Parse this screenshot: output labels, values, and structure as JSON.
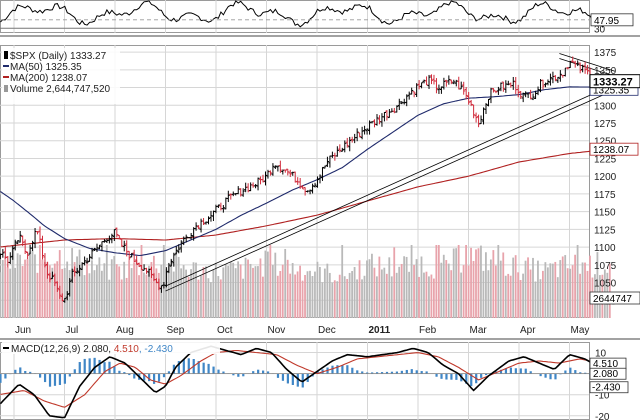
{
  "colors": {
    "background": "#ffffff",
    "grid": "#d6d6d6",
    "price_up": "#000000",
    "price_down": "#d02a3a",
    "ma50": "#1f2a6b",
    "ma200": "#b02020",
    "volume_up": "#b9b9b9",
    "volume_down": "#e8a3ab",
    "trendline": "#000000",
    "macd_line": "#000000",
    "signal_line": "#c0392b",
    "histogram": "#3f86c6"
  },
  "chart_data": [
    {
      "panel": "rsi",
      "type": "line",
      "y_ticks": [
        30
      ],
      "last_value_label": "47.95",
      "ylim": [
        20,
        90
      ]
    },
    {
      "panel": "price",
      "type": "line",
      "legend": {
        "symbol": "$SPX (Daily)",
        "symbol_value": "1333.27",
        "ma50_label": "MA(50)",
        "ma50_value": "1325.35",
        "ma200_label": "MA(200)",
        "ma200_value": "1238.07",
        "volume_label": "Volume",
        "volume_value": "2,644,747,520"
      },
      "months": [
        {
          "label": "Jun",
          "x": 0.0
        },
        {
          "label": "Jul",
          "x": 1.0
        },
        {
          "label": "Aug",
          "x": 2.0
        },
        {
          "label": "Sep",
          "x": 3.0
        },
        {
          "label": "Oct",
          "x": 4.0
        },
        {
          "label": "Nov",
          "x": 5.0
        },
        {
          "label": "Dec",
          "x": 6.0
        },
        {
          "label": "2011",
          "x": 7.0,
          "bold": true
        },
        {
          "label": "Feb",
          "x": 8.0
        },
        {
          "label": "Mar",
          "x": 9.0
        },
        {
          "label": "Apr",
          "x": 10.0
        },
        {
          "label": "May",
          "x": 11.0
        }
      ],
      "ylim": [
        1000,
        1385
      ],
      "y_ticks": [
        1025,
        1050,
        1075,
        1100,
        1125,
        1150,
        1175,
        1200,
        1225,
        1250,
        1275,
        1300,
        1325,
        1350,
        1375
      ],
      "price_anchors": [
        [
          -0.3,
          1095
        ],
        [
          -0.1,
          1080
        ],
        [
          0.1,
          1115
        ],
        [
          0.25,
          1090
        ],
        [
          0.45,
          1125
        ],
        [
          0.65,
          1065
        ],
        [
          0.8,
          1050
        ],
        [
          0.9,
          1030
        ],
        [
          1.0,
          1025
        ],
        [
          1.15,
          1060
        ],
        [
          1.4,
          1080
        ],
        [
          1.6,
          1095
        ],
        [
          1.85,
          1115
        ],
        [
          2.0,
          1120
        ],
        [
          2.1,
          1105
        ],
        [
          2.4,
          1080
        ],
        [
          2.6,
          1070
        ],
        [
          2.8,
          1050
        ],
        [
          2.95,
          1045
        ],
        [
          3.05,
          1075
        ],
        [
          3.3,
          1105
        ],
        [
          3.6,
          1130
        ],
        [
          3.9,
          1145
        ],
        [
          4.2,
          1165
        ],
        [
          4.5,
          1180
        ],
        [
          4.8,
          1190
        ],
        [
          5.0,
          1200
        ],
        [
          5.15,
          1220
        ],
        [
          5.35,
          1210
        ],
        [
          5.6,
          1195
        ],
        [
          5.8,
          1180
        ],
        [
          6.0,
          1195
        ],
        [
          6.2,
          1220
        ],
        [
          6.5,
          1240
        ],
        [
          6.8,
          1258
        ],
        [
          7.0,
          1270
        ],
        [
          7.3,
          1285
        ],
        [
          7.6,
          1300
        ],
        [
          7.9,
          1322
        ],
        [
          8.2,
          1335
        ],
        [
          8.4,
          1325
        ],
        [
          8.7,
          1335
        ],
        [
          8.9,
          1320
        ],
        [
          9.05,
          1300
        ],
        [
          9.2,
          1275
        ],
        [
          9.4,
          1315
        ],
        [
          9.6,
          1325
        ],
        [
          9.9,
          1330
        ],
        [
          10.1,
          1312
        ],
        [
          10.3,
          1318
        ],
        [
          10.5,
          1335
        ],
        [
          10.7,
          1340
        ],
        [
          10.85,
          1345
        ],
        [
          11.0,
          1362
        ],
        [
          11.2,
          1352
        ],
        [
          11.4,
          1345
        ],
        [
          11.6,
          1338
        ],
        [
          11.8,
          1333.27
        ]
      ],
      "ma50_anchors": [
        [
          -0.3,
          1180
        ],
        [
          0.0,
          1165
        ],
        [
          0.3,
          1148
        ],
        [
          0.6,
          1130
        ],
        [
          1.0,
          1112
        ],
        [
          1.5,
          1098
        ],
        [
          2.0,
          1092
        ],
        [
          2.5,
          1088
        ],
        [
          3.0,
          1095
        ],
        [
          3.5,
          1110
        ],
        [
          4.0,
          1125
        ],
        [
          4.5,
          1145
        ],
        [
          5.0,
          1162
        ],
        [
          5.5,
          1180
        ],
        [
          6.0,
          1195
        ],
        [
          6.5,
          1212
        ],
        [
          7.0,
          1238
        ],
        [
          7.5,
          1262
        ],
        [
          8.0,
          1286
        ],
        [
          8.5,
          1302
        ],
        [
          9.0,
          1310
        ],
        [
          9.5,
          1312
        ],
        [
          10.0,
          1315
        ],
        [
          10.5,
          1322
        ],
        [
          11.0,
          1326
        ],
        [
          11.8,
          1325.35
        ]
      ],
      "ma200_anchors": [
        [
          -0.3,
          1100
        ],
        [
          1.0,
          1110
        ],
        [
          2.0,
          1112
        ],
        [
          3.0,
          1110
        ],
        [
          4.0,
          1117
        ],
        [
          5.0,
          1130
        ],
        [
          6.0,
          1145
        ],
        [
          7.0,
          1165
        ],
        [
          8.0,
          1185
        ],
        [
          9.0,
          1200
        ],
        [
          10.0,
          1220
        ],
        [
          11.0,
          1232
        ],
        [
          11.8,
          1238.07
        ]
      ],
      "trendlines": [
        {
          "x1": 3.0,
          "y1": 1045,
          "x2": 11.9,
          "y2": 1330
        },
        {
          "x1": 3.0,
          "y1": 1038,
          "x2": 11.9,
          "y2": 1322
        },
        {
          "x1": 10.8,
          "y1": 1373,
          "x2": 11.9,
          "y2": 1348
        },
        {
          "x1": 10.8,
          "y1": 1366,
          "x2": 11.9,
          "y2": 1341
        }
      ],
      "volume_last_value": "2644747",
      "volume_scale_max": 3600000,
      "volume_anchors": [
        [
          -0.3,
          2600000
        ],
        [
          0.5,
          2900000
        ],
        [
          1.0,
          3100000
        ],
        [
          1.5,
          2600000
        ],
        [
          2.0,
          2300000
        ],
        [
          2.5,
          2600000
        ],
        [
          3.0,
          2800000
        ],
        [
          3.5,
          2400000
        ],
        [
          4.0,
          2300000
        ],
        [
          4.5,
          2400000
        ],
        [
          5.0,
          2700000
        ],
        [
          5.5,
          2500000
        ],
        [
          6.0,
          2300000
        ],
        [
          6.5,
          2100000
        ],
        [
          7.0,
          2600000
        ],
        [
          7.5,
          2500000
        ],
        [
          8.0,
          2700000
        ],
        [
          8.5,
          2500000
        ],
        [
          9.0,
          3100000
        ],
        [
          9.5,
          2800000
        ],
        [
          10.0,
          2500000
        ],
        [
          10.5,
          2300000
        ],
        [
          11.0,
          2600000
        ],
        [
          11.8,
          2644747
        ]
      ]
    },
    {
      "panel": "macd",
      "type": "line",
      "legend": {
        "label": "MACD(12,26,9)",
        "macd_value": "2.080",
        "signal_value": "4.510",
        "histogram_value": "-2.430"
      },
      "ylim": [
        -22,
        15
      ],
      "y_ticks": [
        10,
        -10,
        -20
      ],
      "macd_anchors": [
        [
          -0.3,
          -15
        ],
        [
          0.1,
          -5
        ],
        [
          0.4,
          -10
        ],
        [
          0.7,
          -20
        ],
        [
          1.0,
          -21
        ],
        [
          1.3,
          -6
        ],
        [
          1.6,
          3
        ],
        [
          1.9,
          8
        ],
        [
          2.2,
          5
        ],
        [
          2.5,
          -2
        ],
        [
          2.8,
          -9
        ],
        [
          3.0,
          -6
        ],
        [
          3.2,
          3
        ],
        [
          3.5,
          10
        ],
        [
          3.9,
          13
        ],
        [
          4.2,
          11
        ],
        [
          4.5,
          9
        ],
        [
          4.8,
          12
        ],
        [
          5.1,
          10
        ],
        [
          5.4,
          2
        ],
        [
          5.7,
          -4
        ],
        [
          6.0,
          1
        ],
        [
          6.3,
          6
        ],
        [
          6.6,
          9
        ],
        [
          7.0,
          8
        ],
        [
          7.3,
          9
        ],
        [
          7.6,
          10
        ],
        [
          7.9,
          12
        ],
        [
          8.2,
          10
        ],
        [
          8.5,
          4
        ],
        [
          8.8,
          0
        ],
        [
          9.1,
          -8
        ],
        [
          9.4,
          -1
        ],
        [
          9.8,
          6
        ],
        [
          10.1,
          8
        ],
        [
          10.4,
          5
        ],
        [
          10.7,
          2
        ],
        [
          11.0,
          9
        ],
        [
          11.3,
          7
        ],
        [
          11.6,
          3
        ],
        [
          11.8,
          2.08
        ]
      ],
      "signal_anchors": [
        [
          -0.3,
          -10
        ],
        [
          0.2,
          -8
        ],
        [
          0.6,
          -13
        ],
        [
          1.0,
          -16
        ],
        [
          1.4,
          -10
        ],
        [
          1.8,
          1
        ],
        [
          2.1,
          5
        ],
        [
          2.4,
          3
        ],
        [
          2.7,
          -3
        ],
        [
          3.0,
          -5
        ],
        [
          3.3,
          -1
        ],
        [
          3.7,
          6
        ],
        [
          4.0,
          10
        ],
        [
          4.4,
          11
        ],
        [
          4.8,
          10
        ],
        [
          5.2,
          9
        ],
        [
          5.6,
          4
        ],
        [
          6.0,
          0
        ],
        [
          6.4,
          3
        ],
        [
          6.8,
          7
        ],
        [
          7.2,
          8
        ],
        [
          7.6,
          9
        ],
        [
          8.0,
          10
        ],
        [
          8.4,
          8
        ],
        [
          8.8,
          3
        ],
        [
          9.2,
          -3
        ],
        [
          9.6,
          1
        ],
        [
          10.0,
          5
        ],
        [
          10.4,
          6
        ],
        [
          10.8,
          5
        ],
        [
          11.2,
          7
        ],
        [
          11.6,
          5
        ],
        [
          11.8,
          4.51
        ]
      ]
    }
  ]
}
